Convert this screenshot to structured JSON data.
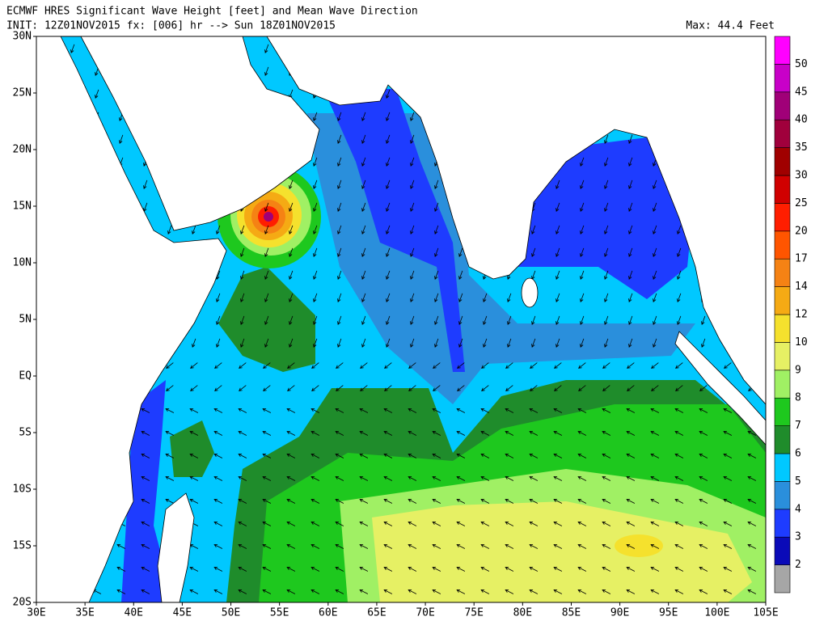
{
  "header": {
    "title": "ECMWF HRES Significant Wave Height [feet] and Mean Wave Direction",
    "init": "INIT: 12Z01NOV2015 fx: [006] hr --> Sun 18Z01NOV2015",
    "max": "Max:  44.4 Feet"
  },
  "map": {
    "lat_labels": [
      "30N",
      "25N",
      "20N",
      "15N",
      "10N",
      "5N",
      "EQ",
      "5S",
      "10S",
      "15S",
      "20S"
    ],
    "lon_labels": [
      "30E",
      "35E",
      "40E",
      "45E",
      "50E",
      "55E",
      "60E",
      "65E",
      "70E",
      "75E",
      "80E",
      "85E",
      "90E",
      "95E",
      "100E",
      "105E"
    ]
  },
  "colorbar": {
    "labels": [
      2,
      3,
      4,
      5,
      6,
      7,
      8,
      9,
      10,
      12,
      14,
      17,
      20,
      25,
      30,
      35,
      40,
      45,
      50
    ]
  }
}
